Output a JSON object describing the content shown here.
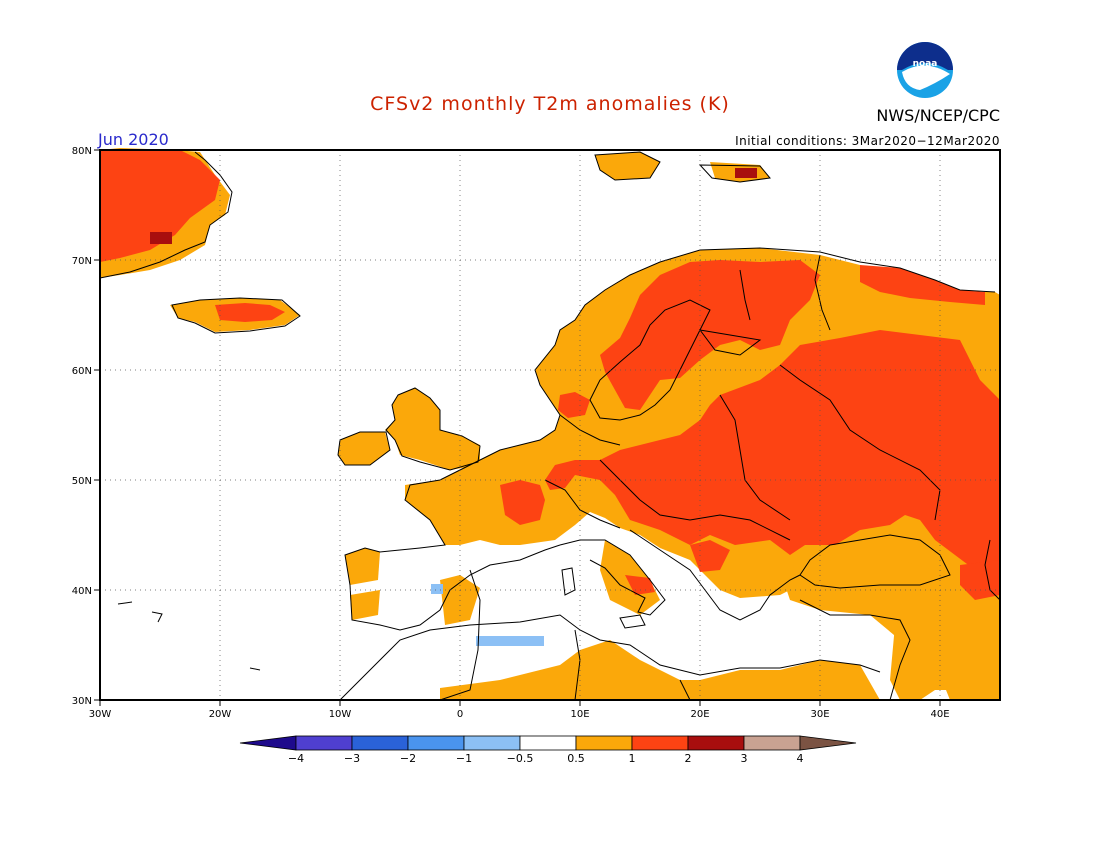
{
  "header": {
    "title": "CFSv2 monthly T2m anomalies (K)",
    "period": "Jun 2020",
    "agency": "NWS/NCEP/CPC",
    "initial_conditions": "Initial conditions: 3Mar2020−12Mar2020",
    "logo_text": "noaa"
  },
  "map": {
    "lon_ticks": [
      "30W",
      "20W",
      "10W",
      "0",
      "10E",
      "20E",
      "30E",
      "40E"
    ],
    "lat_ticks": [
      "80N",
      "70N",
      "60N",
      "50N",
      "40N",
      "30N"
    ]
  },
  "colorbar": {
    "labels": [
      "−4",
      "−3",
      "−2",
      "−1",
      "−0.5",
      "0.5",
      "1",
      "2",
      "3",
      "4"
    ],
    "colors": [
      "#1e0a8c",
      "#4f3fd0",
      "#2a62d8",
      "#4a94ee",
      "#8cc0f5",
      "#ffffff",
      "#fba80a",
      "#fd4313",
      "#a80e0e",
      "#c9a292",
      "#7b5343"
    ]
  },
  "colors": {
    "anom_05_1": "#fba80a",
    "anom_1_2": "#fd4313",
    "anom_2_3": "#a80e0e",
    "anom_neg_05_1": "#8cc0f5"
  }
}
